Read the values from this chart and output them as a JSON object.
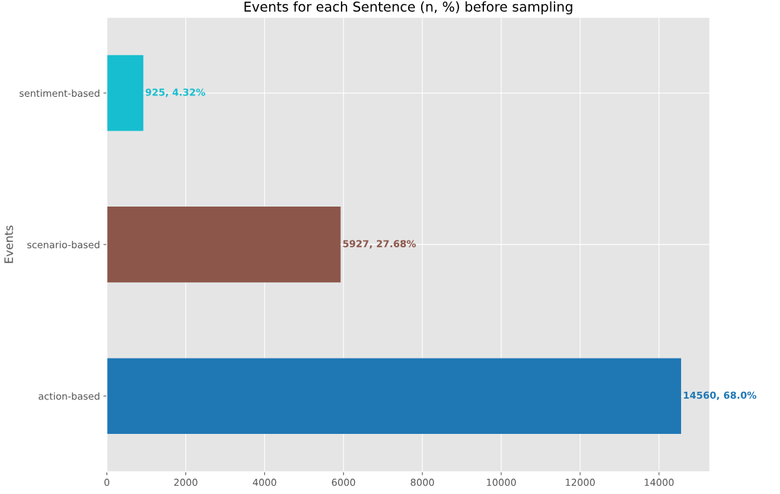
{
  "chart_data": {
    "type": "bar",
    "orientation": "horizontal",
    "title": "Events for each Sentence (n, %) before sampling",
    "ylabel": "Events",
    "categories": [
      "sentiment-based",
      "scenario-based",
      "action-based"
    ],
    "values": [
      925,
      5927,
      14560
    ],
    "colors": [
      "#17becf",
      "#8c564b",
      "#1f77b4"
    ],
    "value_labels": [
      "925, 4.32%",
      "5927, 27.68%",
      "14560, 68.0%"
    ],
    "xlim": [
      0,
      15288
    ],
    "xticks": [
      0,
      2000,
      4000,
      6000,
      8000,
      10000,
      12000,
      14000
    ],
    "grid": true
  }
}
